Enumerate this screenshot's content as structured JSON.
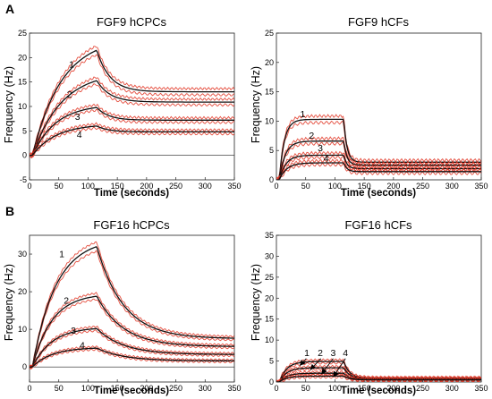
{
  "panel_labels": [
    "A",
    "B"
  ],
  "chart_data": [
    {
      "type": "line",
      "title": "FGF9 hCPCs",
      "xlabel": "Time (seconds)",
      "ylabel": "Frequency (Hz)",
      "xlim": [
        0,
        350
      ],
      "ylim": [
        -5,
        25
      ],
      "xticks": [
        0,
        50,
        100,
        150,
        200,
        250,
        300,
        350
      ],
      "yticks": [
        -5,
        0,
        5,
        10,
        15,
        20,
        25
      ],
      "grid": false,
      "series": [
        {
          "name": "1",
          "peak": 21.5,
          "end": 13.0,
          "rise": 0.02,
          "decay": 0.045
        },
        {
          "name": "2",
          "peak": 15.3,
          "end": 10.9,
          "rise": 0.02,
          "decay": 0.045
        },
        {
          "name": "3",
          "peak": 9.8,
          "end": 7.2,
          "rise": 0.025,
          "decay": 0.05
        },
        {
          "name": "4",
          "peak": 6.0,
          "end": 4.8,
          "rise": 0.025,
          "decay": 0.05
        }
      ],
      "label_points": [
        {
          "text": "1",
          "x": 72,
          "y": 18.0
        },
        {
          "text": "2",
          "x": 68,
          "y": 11.8
        },
        {
          "text": "3",
          "x": 82,
          "y": 7.3
        },
        {
          "text": "4",
          "x": 85,
          "y": 3.6
        }
      ],
      "colors": {
        "fit": "#111111",
        "raw": "#e0301e"
      }
    },
    {
      "type": "line",
      "title": "FGF9 hCFs",
      "xlabel": "Time (seconds)",
      "ylabel": "Frequency (Hz)",
      "xlim": [
        0,
        350
      ],
      "ylim": [
        0,
        25
      ],
      "xticks": [
        0,
        50,
        100,
        150,
        200,
        250,
        300,
        350
      ],
      "yticks": [
        0,
        5,
        10,
        15,
        20,
        25
      ],
      "grid": false,
      "series": [
        {
          "name": "1",
          "peak": 10.3,
          "end": 3.0,
          "rise": 0.12,
          "decay": 0.18
        },
        {
          "name": "2",
          "peak": 6.6,
          "end": 2.5,
          "rise": 0.1,
          "decay": 0.18
        },
        {
          "name": "3",
          "peak": 4.2,
          "end": 1.9,
          "rise": 0.09,
          "decay": 0.18
        },
        {
          "name": "4",
          "peak": 2.9,
          "end": 1.4,
          "rise": 0.08,
          "decay": 0.18
        }
      ],
      "label_points": [
        {
          "text": "1",
          "x": 45,
          "y": 10.7
        },
        {
          "text": "2",
          "x": 60,
          "y": 7.0
        },
        {
          "text": "3",
          "x": 75,
          "y": 4.9
        },
        {
          "text": "4",
          "x": 85,
          "y": 3.1
        }
      ],
      "colors": {
        "fit": "#111111",
        "raw": "#e0301e"
      }
    },
    {
      "type": "line",
      "title": "FGF16 hCPCs",
      "xlabel": "Time (seconds)",
      "ylabel": "Frequency (Hz)",
      "xlim": [
        0,
        350
      ],
      "ylim": [
        -4,
        35
      ],
      "xticks": [
        0,
        50,
        100,
        150,
        200,
        250,
        300,
        350
      ],
      "yticks": [
        0,
        10,
        20,
        30
      ],
      "grid": false,
      "series": [
        {
          "name": "1",
          "peak": 32.0,
          "end": 7.5,
          "rise": 0.025,
          "decay": 0.022
        },
        {
          "name": "2",
          "peak": 18.8,
          "end": 5.4,
          "rise": 0.03,
          "decay": 0.022
        },
        {
          "name": "3",
          "peak": 10.2,
          "end": 3.3,
          "rise": 0.03,
          "decay": 0.022
        },
        {
          "name": "4",
          "peak": 5.0,
          "end": 1.6,
          "rise": 0.03,
          "decay": 0.022
        }
      ],
      "label_points": [
        {
          "text": "1",
          "x": 55,
          "y": 29.2
        },
        {
          "text": "2",
          "x": 63,
          "y": 16.8
        },
        {
          "text": "3",
          "x": 75,
          "y": 8.8
        },
        {
          "text": "4",
          "x": 90,
          "y": 4.9
        }
      ],
      "colors": {
        "fit": "#111111",
        "raw": "#e0301e"
      }
    },
    {
      "type": "line",
      "title": "FGF16 hCFs",
      "xlabel": "Time (seconds)",
      "ylabel": "Frequency (Hz)",
      "xlim": [
        0,
        350
      ],
      "ylim": [
        0,
        35
      ],
      "xticks": [
        0,
        50,
        100,
        150,
        200,
        250,
        300,
        350
      ],
      "yticks": [
        0,
        5,
        10,
        15,
        20,
        25,
        30,
        35
      ],
      "grid": false,
      "series": [
        {
          "name": "1",
          "peak": 4.9,
          "end": 0.9,
          "rise": 0.08,
          "decay": 0.1
        },
        {
          "name": "2",
          "peak": 3.4,
          "end": 0.8,
          "rise": 0.08,
          "decay": 0.1
        },
        {
          "name": "3",
          "peak": 2.1,
          "end": 0.6,
          "rise": 0.08,
          "decay": 0.1
        },
        {
          "name": "4",
          "peak": 1.4,
          "end": 0.5,
          "rise": 0.08,
          "decay": 0.1
        }
      ],
      "label_points": [
        {
          "text": "1",
          "x": 52,
          "y": 6.2
        },
        {
          "text": "2",
          "x": 75,
          "y": 6.2
        },
        {
          "text": "3",
          "x": 97,
          "y": 6.2
        },
        {
          "text": "4",
          "x": 118,
          "y": 6.2
        }
      ],
      "arrows": [
        {
          "from": [
            51,
            5.6
          ],
          "to": [
            40,
            3.9
          ]
        },
        {
          "from": [
            76,
            5.6
          ],
          "to": [
            58,
            2.9
          ]
        },
        {
          "from": [
            97,
            5.6
          ],
          "to": [
            77,
            1.9
          ]
        },
        {
          "from": [
            118,
            5.6
          ],
          "to": [
            97,
            1.2
          ]
        }
      ],
      "colors": {
        "fit": "#111111",
        "raw": "#e0301e"
      }
    }
  ]
}
